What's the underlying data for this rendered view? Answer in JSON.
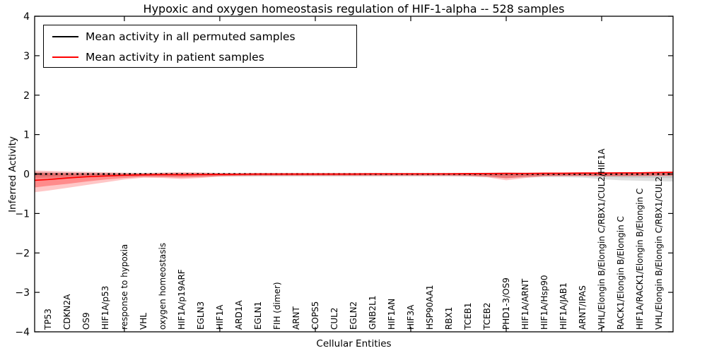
{
  "figure": {
    "title": "Hypoxic and oxygen homeostasis regulation of HIF-1-alpha -- 528 samples",
    "xlabel": "Cellular Entities",
    "ylabel": "Inferred Activity",
    "background": "#ffffff"
  },
  "legend": {
    "items": [
      {
        "label": "Mean activity in all permuted samples",
        "color": "#000000"
      },
      {
        "label": "Mean activity in patient samples",
        "color": "#ff0000"
      }
    ]
  },
  "chart_data": {
    "type": "line",
    "title": "Hypoxic and oxygen homeostasis regulation of HIF-1-alpha -- 528 samples",
    "xlabel": "Cellular Entities",
    "ylabel": "Inferred Activity",
    "ylim": [
      -4,
      4
    ],
    "yticks": [
      4,
      3,
      2,
      1,
      0,
      -1,
      -2,
      -3,
      -4
    ],
    "yticklabels": [
      "4",
      "3",
      "2",
      "1",
      "0",
      "−1",
      "−2",
      "−3",
      "−4"
    ],
    "xlim_index": [
      -0.7,
      32.74
    ],
    "xtick_index": [
      4,
      9,
      14,
      19,
      24,
      29
    ],
    "grid": false,
    "legend_position": "upper left",
    "categories": [
      "TP53",
      "CDKN2A",
      "OS9",
      "HIF1A/p53",
      "response to hypoxia",
      "VHL",
      "oxygen homeostasis",
      "HIF1A/p19ARF",
      "EGLN3",
      "HIF1A",
      "ARD1A",
      "EGLN1",
      "FIH (dimer)",
      "ARNT",
      "COPS5",
      "CUL2",
      "EGLN2",
      "GNB2L1",
      "HIF1AN",
      "HIF3A",
      "HSP90AA1",
      "RBX1",
      "TCEB1",
      "TCEB2",
      "PHD1-3/OS9",
      "HIF1A/ARNT",
      "HIF1A/Hsp90",
      "HIF1A/JAB1",
      "ARNT/IPAS",
      "VHL/Elongin B/Elongin C/RBX1/CUL2/HIF1A",
      "RACK1/Elongin B/Elongin C",
      "HIF1A/RACK1/Elongin B/Elongin C",
      "VHL/Elongin B/Elongin C/RBX1/CUL2"
    ],
    "x": [
      -0.7,
      0,
      1,
      2,
      3,
      4,
      5,
      6,
      7,
      8,
      9,
      10,
      11,
      12,
      13,
      14,
      15,
      16,
      17,
      18,
      19,
      20,
      21,
      22,
      23,
      24,
      25,
      26,
      27,
      28,
      29,
      30,
      31,
      32,
      32.74
    ],
    "series": [
      {
        "name": "Mean activity in all permuted samples",
        "color": "#000000",
        "style": "dashed",
        "values": [
          0,
          0,
          0,
          0,
          0,
          0,
          0,
          0,
          0,
          0,
          0,
          0,
          0,
          0,
          0,
          0,
          0,
          0,
          0,
          0,
          0,
          0,
          0,
          0,
          0,
          0,
          0,
          0,
          0,
          0,
          0,
          0,
          0,
          0,
          0
        ]
      },
      {
        "name": "Mean activity in patient samples",
        "color": "#ff0000",
        "style": "solid",
        "values": [
          -0.16,
          -0.14,
          -0.1,
          -0.07,
          -0.05,
          -0.03,
          -0.02,
          -0.015,
          -0.02,
          -0.015,
          -0.01,
          -0.005,
          0,
          0,
          0,
          0,
          0,
          0,
          0.005,
          0.005,
          0.005,
          0.005,
          0.005,
          0.01,
          0.01,
          0.015,
          0.015,
          0.02,
          0.02,
          0.025,
          0.025,
          0.03,
          0.03,
          0.04,
          0.045
        ]
      }
    ],
    "bands": [
      {
        "name": "permuted-envelope-outer",
        "color": "rgba(0,0,0,0.12)",
        "upper": [
          0.055,
          0.05,
          0.04,
          0.035,
          0.03,
          0.03,
          0.03,
          0.03,
          0.03,
          0.03,
          0.03,
          0.03,
          0.03,
          0.03,
          0.03,
          0.03,
          0.03,
          0.03,
          0.03,
          0.03,
          0.03,
          0.03,
          0.03,
          0.03,
          0.035,
          0.04,
          0.035,
          0.035,
          0.035,
          0.04,
          0.045,
          0.05,
          0.05,
          0.055,
          0.055
        ],
        "lower": [
          -0.11,
          -0.1,
          -0.085,
          -0.075,
          -0.07,
          -0.065,
          -0.06,
          -0.06,
          -0.06,
          -0.06,
          -0.06,
          -0.06,
          -0.06,
          -0.06,
          -0.06,
          -0.06,
          -0.06,
          -0.06,
          -0.06,
          -0.06,
          -0.06,
          -0.06,
          -0.06,
          -0.065,
          -0.08,
          -0.1,
          -0.085,
          -0.08,
          -0.08,
          -0.09,
          -0.13,
          -0.16,
          -0.17,
          -0.18,
          -0.19
        ]
      },
      {
        "name": "permuted-envelope-inner",
        "color": "rgba(0,0,0,0.10)",
        "upper": [
          0.03,
          0.028,
          0.022,
          0.019,
          0.017,
          0.017,
          0.017,
          0.017,
          0.017,
          0.017,
          0.017,
          0.017,
          0.017,
          0.017,
          0.017,
          0.017,
          0.017,
          0.017,
          0.017,
          0.017,
          0.017,
          0.017,
          0.017,
          0.017,
          0.019,
          0.022,
          0.019,
          0.019,
          0.019,
          0.022,
          0.025,
          0.028,
          0.028,
          0.03,
          0.03
        ],
        "lower": [
          -0.06,
          -0.055,
          -0.047,
          -0.041,
          -0.039,
          -0.036,
          -0.033,
          -0.033,
          -0.033,
          -0.033,
          -0.033,
          -0.033,
          -0.033,
          -0.033,
          -0.033,
          -0.033,
          -0.033,
          -0.033,
          -0.033,
          -0.033,
          -0.033,
          -0.033,
          -0.033,
          -0.036,
          -0.044,
          -0.055,
          -0.047,
          -0.044,
          -0.044,
          -0.05,
          -0.072,
          -0.088,
          -0.094,
          -0.099,
          -0.105
        ]
      },
      {
        "name": "patient-envelope-outer",
        "color": "rgba(255,0,0,0.22)",
        "upper": [
          0.09,
          0.08,
          0.065,
          0.055,
          0.045,
          0.03,
          0.025,
          0.035,
          0.05,
          0.04,
          0.025,
          0.02,
          0.02,
          0.02,
          0.02,
          0.02,
          0.02,
          0.02,
          0.02,
          0.02,
          0.02,
          0.02,
          0.02,
          0.025,
          0.03,
          0.045,
          0.03,
          0.035,
          0.035,
          0.04,
          0.04,
          0.045,
          0.045,
          0.055,
          0.055
        ],
        "lower": [
          -0.46,
          -0.42,
          -0.35,
          -0.28,
          -0.21,
          -0.14,
          -0.095,
          -0.1,
          -0.125,
          -0.1,
          -0.065,
          -0.055,
          -0.05,
          -0.05,
          -0.05,
          -0.05,
          -0.05,
          -0.05,
          -0.05,
          -0.05,
          -0.05,
          -0.05,
          -0.05,
          -0.055,
          -0.08,
          -0.16,
          -0.1,
          -0.06,
          -0.055,
          -0.055,
          -0.06,
          -0.06,
          -0.055,
          -0.05,
          -0.05
        ]
      },
      {
        "name": "patient-envelope-inner",
        "color": "rgba(255,0,0,0.30)",
        "upper": [
          0.035,
          0.03,
          0.02,
          0.015,
          0.01,
          0.005,
          0.005,
          0.01,
          0.02,
          0.015,
          0.01,
          0.01,
          0.01,
          0.01,
          0.01,
          0.01,
          0.01,
          0.01,
          0.01,
          0.01,
          0.01,
          0.01,
          0.01,
          0.012,
          0.015,
          0.025,
          0.015,
          0.02,
          0.02,
          0.025,
          0.025,
          0.03,
          0.03,
          0.04,
          0.04
        ],
        "lower": [
          -0.34,
          -0.3,
          -0.25,
          -0.19,
          -0.14,
          -0.1,
          -0.07,
          -0.075,
          -0.09,
          -0.075,
          -0.05,
          -0.04,
          -0.035,
          -0.035,
          -0.035,
          -0.035,
          -0.035,
          -0.035,
          -0.035,
          -0.035,
          -0.035,
          -0.035,
          -0.035,
          -0.04,
          -0.055,
          -0.11,
          -0.07,
          -0.045,
          -0.04,
          -0.04,
          -0.045,
          -0.045,
          -0.04,
          -0.035,
          -0.035
        ]
      }
    ]
  }
}
